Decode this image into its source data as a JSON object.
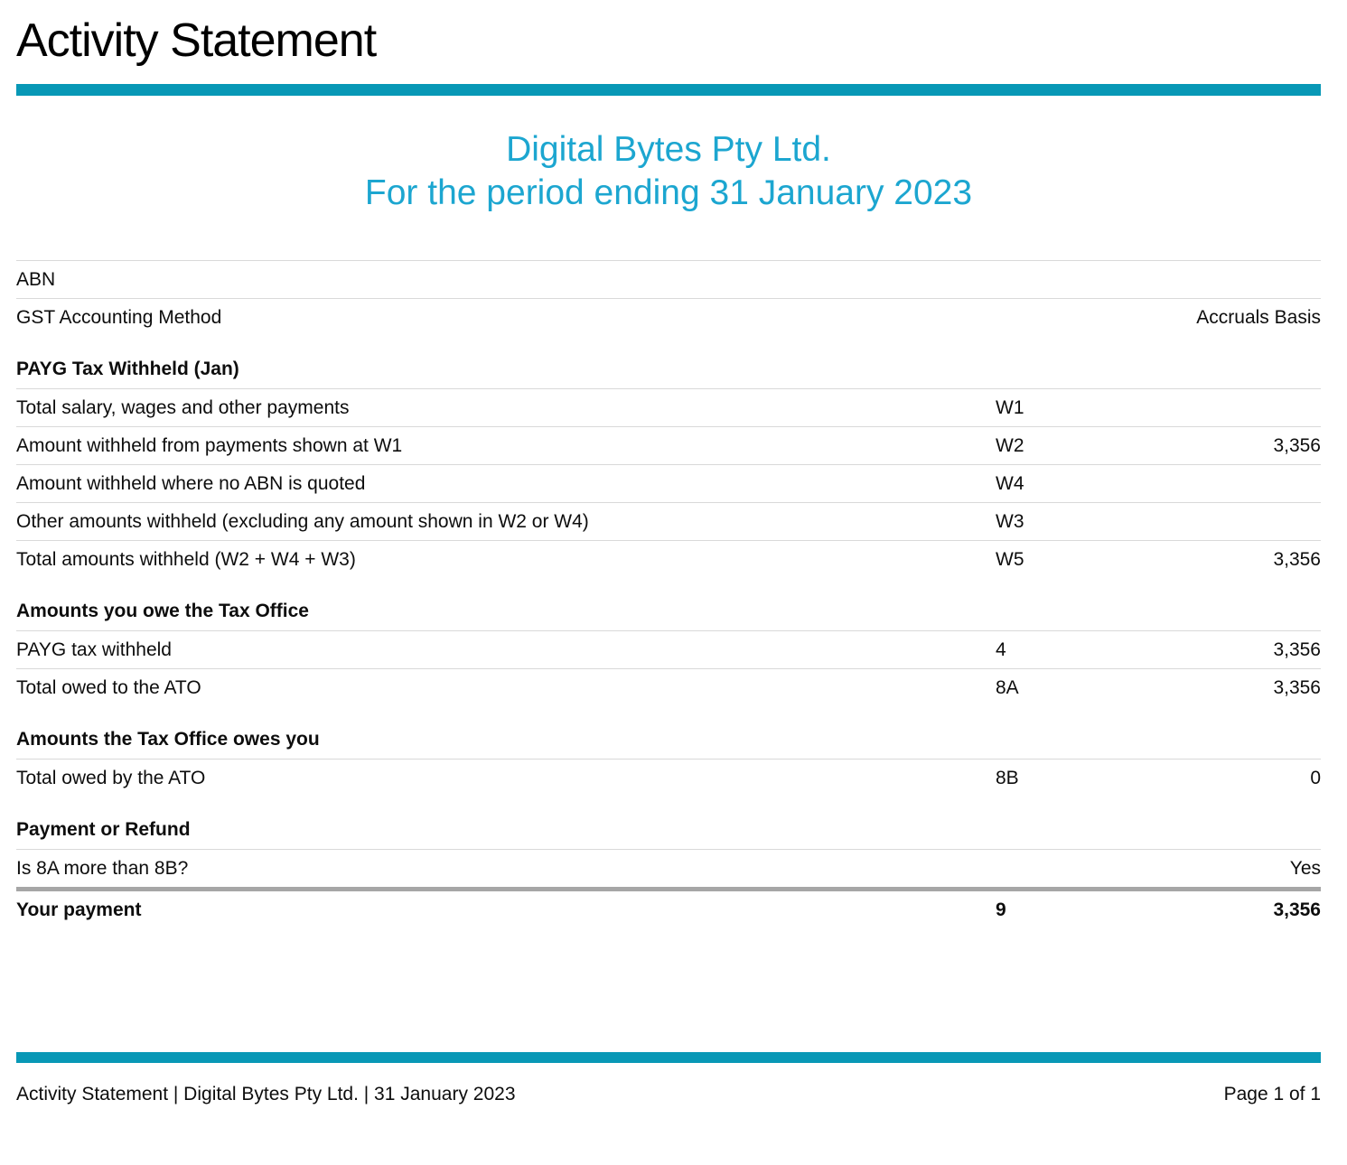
{
  "header": {
    "title": "Activity Statement",
    "company": "Digital Bytes Pty Ltd.",
    "period": "For the period ending 31 January 2023"
  },
  "colors": {
    "accent_bar": "#0898b6",
    "header_text": "#1ca6d0",
    "row_rule": "#d9d9d9",
    "thick_rule": "#a6a6a6"
  },
  "info_rows": [
    {
      "label": "ABN",
      "value": ""
    },
    {
      "label": "GST Accounting Method",
      "value": "Accruals Basis"
    }
  ],
  "sections": [
    {
      "heading": "PAYG Tax Withheld (Jan)",
      "rows": [
        {
          "label": "Total salary, wages and other payments",
          "code": "W1",
          "value": ""
        },
        {
          "label": "Amount withheld from payments shown at W1",
          "code": "W2",
          "value": "3,356"
        },
        {
          "label": "Amount withheld where no ABN is quoted",
          "code": "W4",
          "value": ""
        },
        {
          "label": "Other amounts withheld (excluding any amount shown in W2 or W4)",
          "code": "W3",
          "value": ""
        },
        {
          "label": "Total amounts withheld (W2 + W4 + W3)",
          "code": "W5",
          "value": "3,356"
        }
      ]
    },
    {
      "heading": "Amounts you owe the Tax Office",
      "rows": [
        {
          "label": "PAYG tax withheld",
          "code": "4",
          "value": "3,356"
        },
        {
          "label": "Total owed to the ATO",
          "code": "8A",
          "value": "3,356"
        }
      ]
    },
    {
      "heading": "Amounts the Tax Office owes you",
      "rows": [
        {
          "label": "Total owed by the ATO",
          "code": "8B",
          "value": "0"
        }
      ]
    },
    {
      "heading": "Payment or Refund",
      "rows": [
        {
          "label": "Is 8A more than 8B?",
          "code": "",
          "value": "Yes",
          "divider": "thick"
        },
        {
          "label": "Your payment",
          "code": "9",
          "value": "3,356",
          "bold": true
        }
      ]
    }
  ],
  "footer": {
    "left": "Activity Statement | Digital Bytes Pty Ltd. | 31 January 2023",
    "right": "Page 1 of 1"
  }
}
